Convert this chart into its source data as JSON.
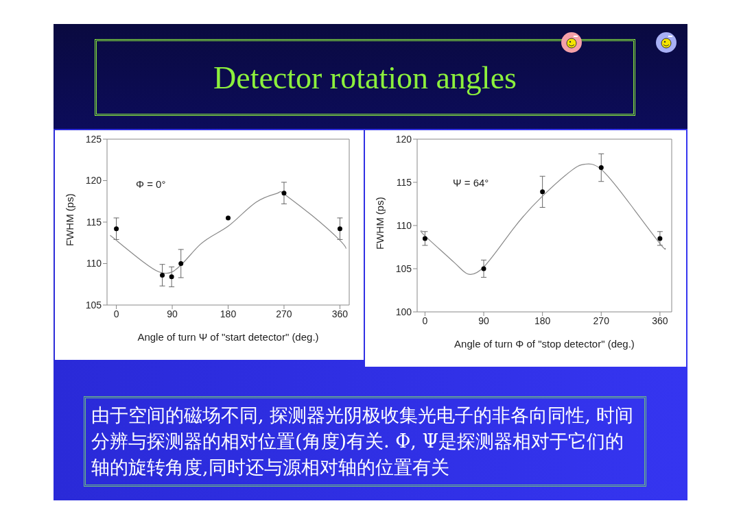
{
  "chart_data": [
    {
      "type": "scatter",
      "title": "Detector rotation angles",
      "xlabel": "Angle of turn Ψ of \"start detector\" (deg.)",
      "ylabel": "FWHM (ps)",
      "annotations": [
        "Φ = 0°"
      ],
      "xlim": [
        -15,
        375
      ],
      "xticks": [
        0,
        90,
        180,
        270,
        360
      ],
      "ylim": [
        105,
        125
      ],
      "yticks": [
        105,
        110,
        115,
        120,
        125
      ],
      "grid": false,
      "series": [
        {
          "marker": "circle",
          "color": "#000000",
          "x": [
            0,
            74,
            89,
            104,
            180,
            270,
            360
          ],
          "values": [
            114.2,
            108.6,
            108.4,
            110.0,
            115.5,
            118.5,
            114.2
          ],
          "errors": [
            1.3,
            1.3,
            1.2,
            1.7,
            null,
            1.3,
            1.3
          ]
        },
        {
          "type": "line",
          "marker": "none",
          "color": "#888888",
          "x": [
            -10,
            0,
            45,
            90,
            135,
            180,
            225,
            260,
            270,
            315,
            360,
            370
          ],
          "values": [
            113.4,
            112.8,
            110.1,
            109.0,
            112.3,
            114.5,
            117.4,
            118.5,
            118.4,
            115.8,
            112.8,
            111.8
          ]
        }
      ]
    },
    {
      "type": "scatter",
      "xlabel": "Angle of turn Φ of \"stop detector\" (deg.)",
      "ylabel": "FWHM (ps)",
      "annotations": [
        "Ψ = 64°",
        "由于空间的磁场不同, 探测器光阴极收集光电子的非各向同性, 时间分辨与探测器的相对位置(角度)有关. Φ, Ψ是探测器相对于它们的轴的旋转角度,同时还与源相对轴的位置有关"
      ],
      "xlim": [
        -12,
        378
      ],
      "xticks": [
        0,
        90,
        180,
        270,
        360
      ],
      "ylim": [
        100,
        120
      ],
      "yticks": [
        100,
        105,
        110,
        115,
        120
      ],
      "grid": false,
      "series": [
        {
          "marker": "circle",
          "color": "#000000",
          "x": [
            0,
            90,
            180,
            270,
            360
          ],
          "values": [
            108.5,
            105.0,
            113.9,
            116.7,
            108.5
          ],
          "errors": [
            0.8,
            1.0,
            1.8,
            1.6,
            0.8
          ]
        },
        {
          "type": "line",
          "marker": "none",
          "color": "#888888",
          "x": [
            -3,
            0,
            45,
            65,
            90,
            135,
            180,
            225,
            245,
            270,
            315,
            360,
            368
          ],
          "values": [
            109.3,
            108.8,
            105.7,
            104.4,
            105.2,
            109.6,
            113.4,
            116.4,
            117.1,
            116.5,
            112.4,
            107.9,
            107.4
          ]
        }
      ]
    }
  ]
}
